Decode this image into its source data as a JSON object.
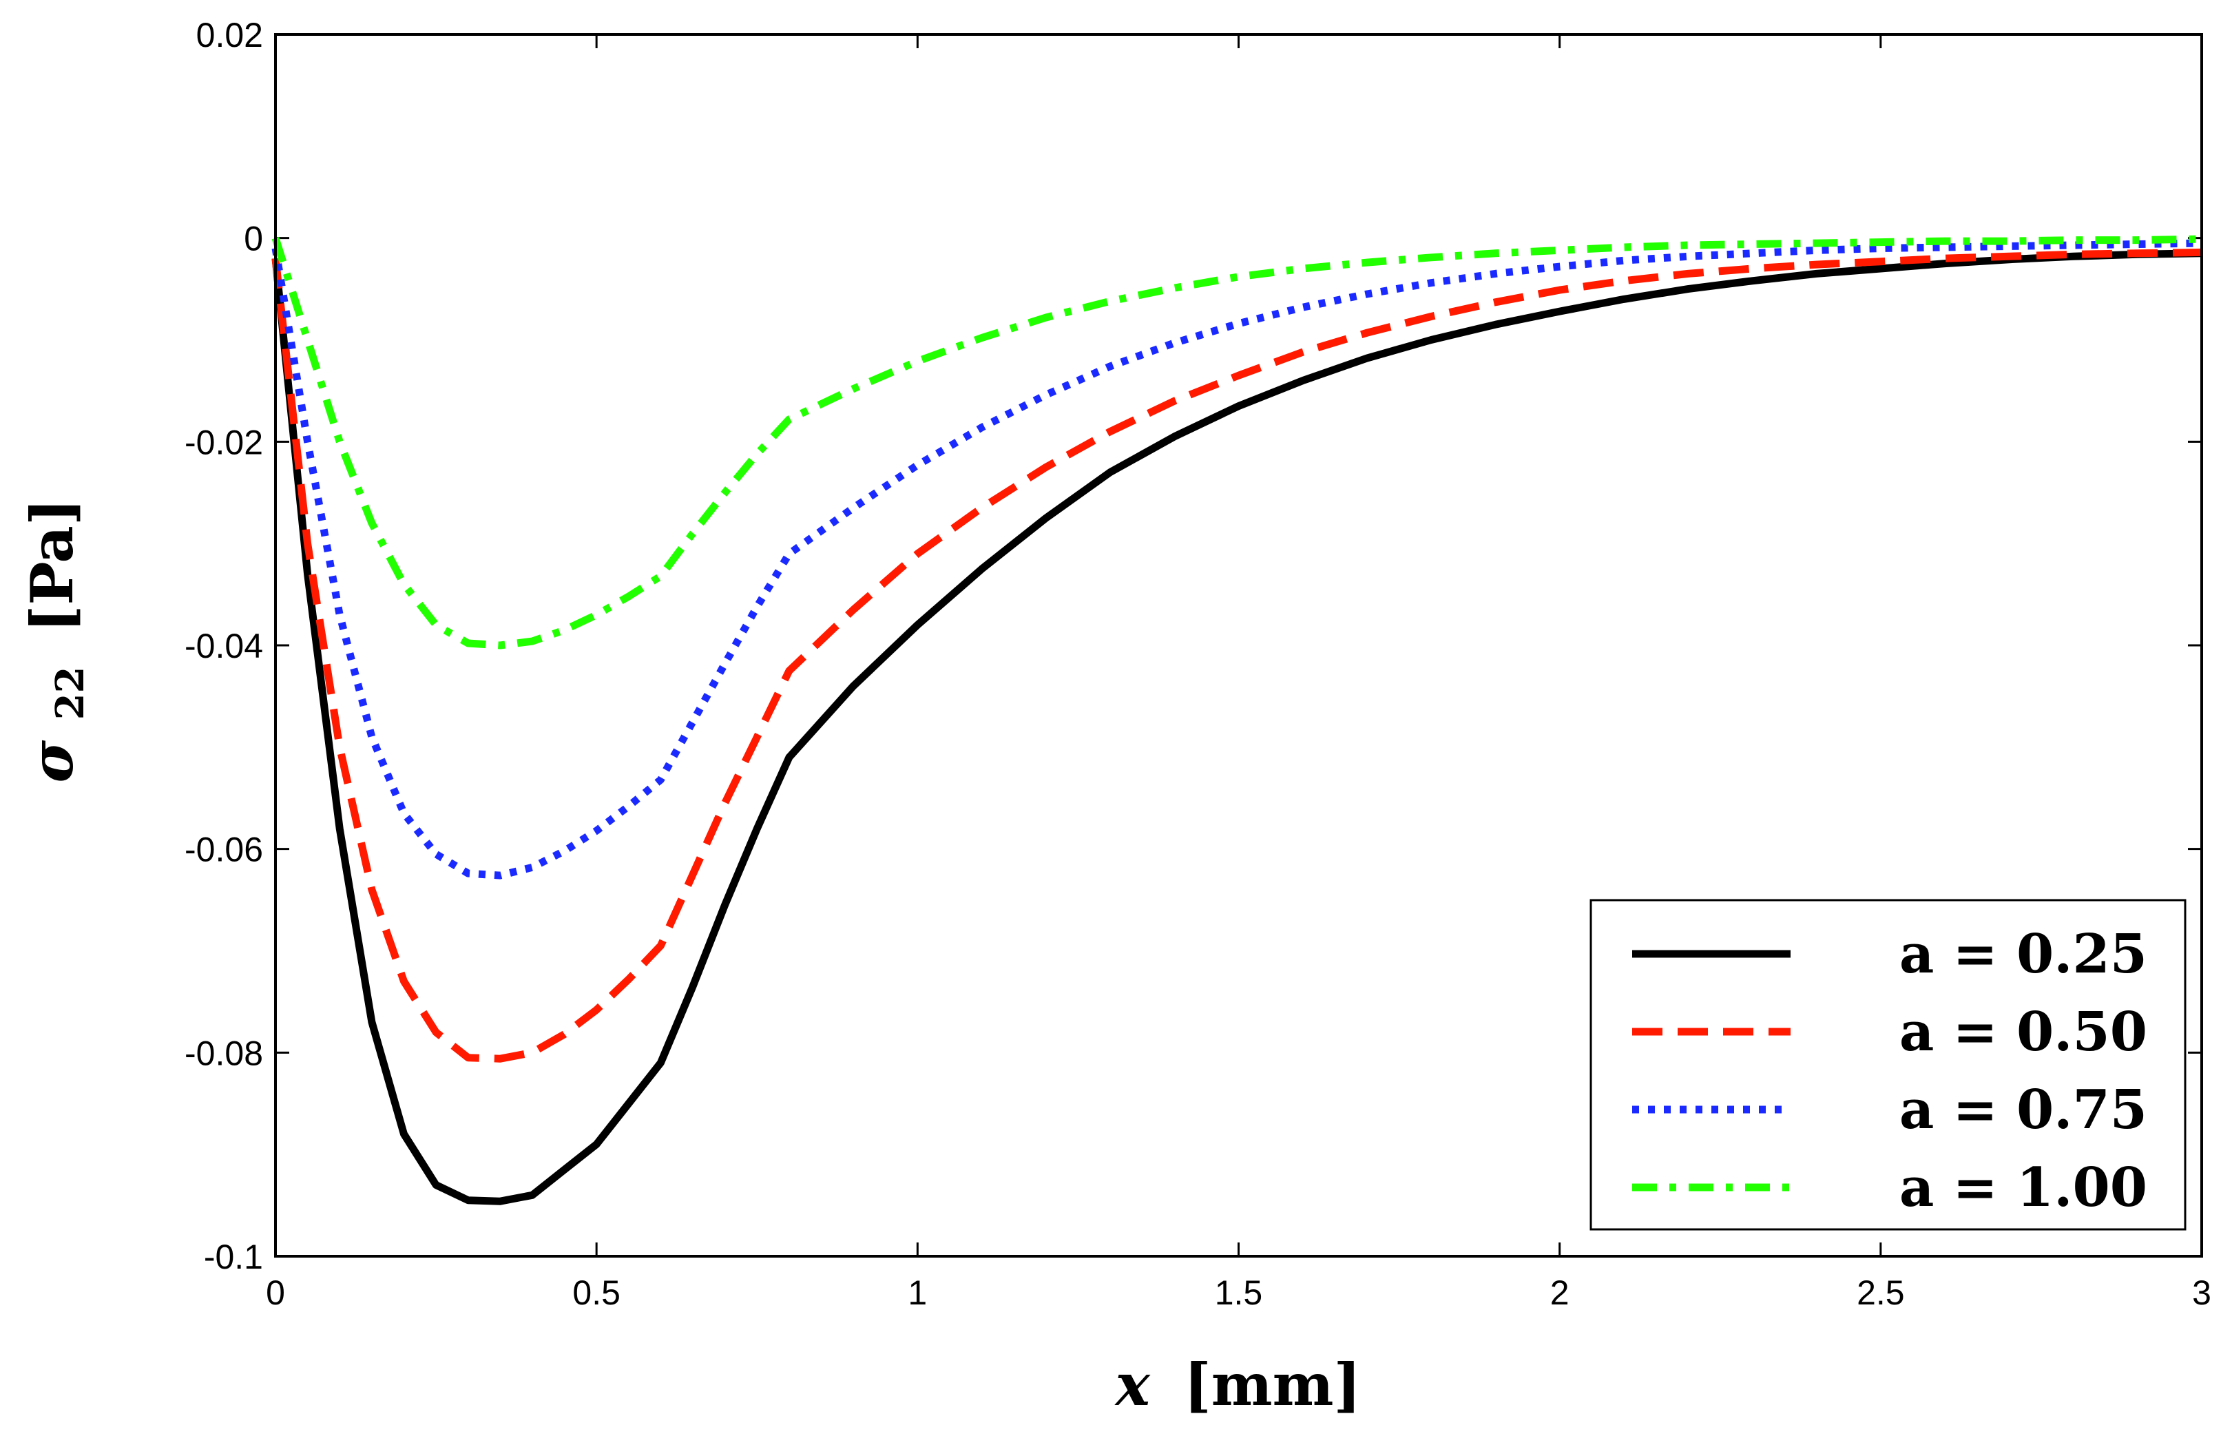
{
  "chart_data": {
    "type": "line",
    "title": "",
    "xlabel": {
      "var": "x",
      "unit": "[mm]"
    },
    "ylabel": {
      "var": "σ",
      "sub": "22",
      "unit": "[Pa]"
    },
    "xlim": [
      0,
      3
    ],
    "ylim": [
      -0.1,
      0.02
    ],
    "xticks": [
      0,
      0.5,
      1,
      1.5,
      2,
      2.5,
      3
    ],
    "xtick_labels": [
      "0",
      "0.5",
      "1",
      "1.5",
      "2",
      "2.5",
      "3"
    ],
    "yticks": [
      0.02,
      0,
      -0.02,
      -0.04,
      -0.06,
      -0.08,
      -0.1
    ],
    "ytick_labels": [
      "0.02",
      "0",
      "-0.02",
      "-0.04",
      "-0.06",
      "-0.08",
      "-0.1"
    ],
    "grid": false,
    "legend_position": "bottom-right",
    "x": [
      0,
      0.05,
      0.1,
      0.15,
      0.2,
      0.25,
      0.3,
      0.35,
      0.4,
      0.45,
      0.5,
      0.55,
      0.6,
      0.65,
      0.7,
      0.75,
      0.8,
      0.9,
      1.0,
      1.1,
      1.2,
      1.3,
      1.4,
      1.5,
      1.6,
      1.7,
      1.8,
      1.9,
      2.0,
      2.1,
      2.2,
      2.3,
      2.4,
      2.5,
      2.6,
      2.7,
      2.8,
      2.9,
      3.0
    ],
    "series": [
      {
        "name": "a = 0.25",
        "color": "#000000",
        "style": "solid",
        "values": [
          -0.002,
          -0.033,
          -0.058,
          -0.077,
          -0.088,
          -0.093,
          -0.0945,
          -0.0946,
          -0.094,
          -0.0915,
          -0.089,
          -0.085,
          -0.081,
          -0.0735,
          -0.0655,
          -0.058,
          -0.051,
          -0.044,
          -0.038,
          -0.0325,
          -0.0275,
          -0.023,
          -0.0195,
          -0.0165,
          -0.014,
          -0.0118,
          -0.01,
          -0.0085,
          -0.0072,
          -0.006,
          -0.005,
          -0.0042,
          -0.0035,
          -0.003,
          -0.0025,
          -0.0021,
          -0.0018,
          -0.0016,
          -0.0015
        ]
      },
      {
        "name": "a = 0.50",
        "color": "#ff1a00",
        "style": "dashed",
        "values": [
          -0.002,
          -0.03,
          -0.05,
          -0.064,
          -0.073,
          -0.078,
          -0.0805,
          -0.0806,
          -0.08,
          -0.0782,
          -0.0758,
          -0.0728,
          -0.0695,
          -0.0625,
          -0.0555,
          -0.049,
          -0.0425,
          -0.0365,
          -0.031,
          -0.0265,
          -0.0225,
          -0.019,
          -0.016,
          -0.0135,
          -0.0112,
          -0.0093,
          -0.0077,
          -0.0063,
          -0.0051,
          -0.0042,
          -0.0035,
          -0.003,
          -0.0026,
          -0.0023,
          -0.002,
          -0.0018,
          -0.0016,
          -0.0015,
          -0.0014
        ]
      },
      {
        "name": "a = 0.75",
        "color": "#1a2aff",
        "style": "dotted",
        "values": [
          -0.001,
          -0.02,
          -0.037,
          -0.049,
          -0.0565,
          -0.0605,
          -0.0624,
          -0.0626,
          -0.0618,
          -0.0602,
          -0.0582,
          -0.0558,
          -0.0532,
          -0.0475,
          -0.0418,
          -0.0362,
          -0.031,
          -0.0265,
          -0.0223,
          -0.0186,
          -0.0154,
          -0.0126,
          -0.0103,
          -0.0084,
          -0.0068,
          -0.0055,
          -0.0044,
          -0.0035,
          -0.0028,
          -0.0022,
          -0.0018,
          -0.0015,
          -0.0012,
          -0.001,
          -0.0009,
          -0.0008,
          -0.0007,
          -0.0006,
          -0.0005
        ]
      },
      {
        "name": "a = 1.00",
        "color": "#22ff00",
        "style": "dashdot",
        "values": [
          0,
          -0.01,
          -0.02,
          -0.028,
          -0.034,
          -0.038,
          -0.0398,
          -0.04,
          -0.0396,
          -0.0385,
          -0.037,
          -0.0352,
          -0.0332,
          -0.029,
          -0.025,
          -0.0212,
          -0.0178,
          -0.0148,
          -0.0121,
          -0.0098,
          -0.0078,
          -0.0062,
          -0.0049,
          -0.0038,
          -0.003,
          -0.0024,
          -0.0019,
          -0.0015,
          -0.0012,
          -0.0009,
          -0.0007,
          -0.0006,
          -0.0005,
          -0.0004,
          -0.0003,
          -0.0003,
          -0.0002,
          -0.0002,
          -0.0001
        ]
      }
    ]
  }
}
